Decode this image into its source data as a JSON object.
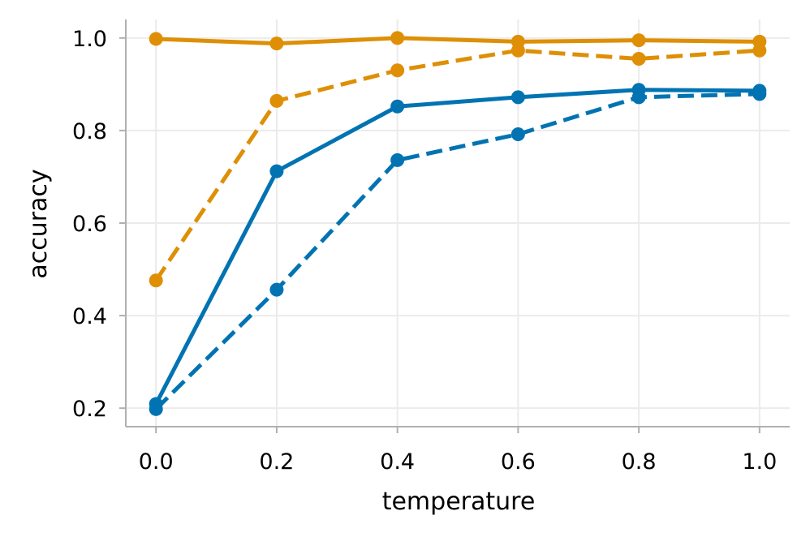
{
  "chart_data": {
    "type": "line",
    "title": "",
    "xlabel": "temperature",
    "ylabel": "accuracy",
    "xlim": [
      -0.05,
      1.05
    ],
    "ylim": [
      0.16,
      1.04
    ],
    "x_ticks": [
      0.0,
      0.2,
      0.4,
      0.6,
      0.8,
      1.0
    ],
    "y_ticks": [
      0.2,
      0.4,
      0.6,
      0.8,
      1.0
    ],
    "x_tick_labels": [
      "0.0",
      "0.2",
      "0.4",
      "0.6",
      "0.8",
      "1.0"
    ],
    "y_tick_labels": [
      "0.2",
      "0.4",
      "0.6",
      "0.8",
      "1.0"
    ],
    "grid": true,
    "x": [
      0.0,
      0.2,
      0.4,
      0.6,
      0.8,
      1.0
    ],
    "series": [
      {
        "name": "orange-solid",
        "color": "#de8f05",
        "linestyle": "solid",
        "values": [
          0.998,
          0.988,
          1.0,
          0.992,
          0.995,
          0.992
        ]
      },
      {
        "name": "orange-dashed",
        "color": "#de8f05",
        "linestyle": "dashed",
        "values": [
          0.476,
          0.864,
          0.93,
          0.973,
          0.955,
          0.973
        ]
      },
      {
        "name": "blue-solid",
        "color": "#0173b2",
        "linestyle": "solid",
        "values": [
          0.209,
          0.712,
          0.852,
          0.872,
          0.888,
          0.886
        ]
      },
      {
        "name": "blue-dashed",
        "color": "#0173b2",
        "linestyle": "dashed",
        "values": [
          0.198,
          0.456,
          0.736,
          0.792,
          0.872,
          0.879
        ]
      }
    ]
  },
  "colors": {
    "axis": "#b0b0b0",
    "grid": "#ebebeb",
    "text": "#000000"
  }
}
